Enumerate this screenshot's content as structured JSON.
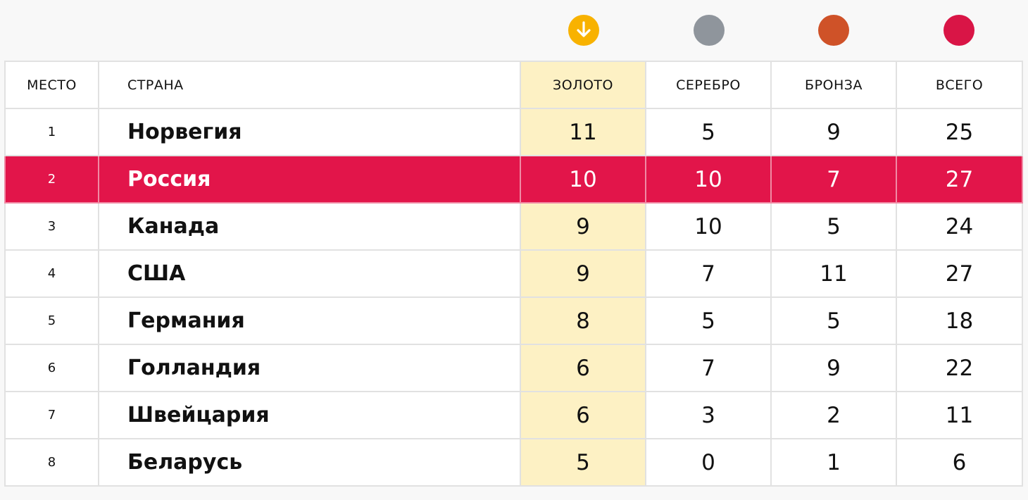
{
  "colors": {
    "gold": "#f8b200",
    "silver": "#8f959c",
    "bronze": "#cf5228",
    "total": "#d91546",
    "highlight_row": "#e2154a",
    "gold_column": "#fdf1c4"
  },
  "header_icons": [
    {
      "name": "gold-medal-icon",
      "color": "#f8b200",
      "glyph": "arrow-down-icon"
    },
    {
      "name": "silver-medal-icon",
      "color": "#8f959c"
    },
    {
      "name": "bronze-medal-icon",
      "color": "#cf5228"
    },
    {
      "name": "total-medal-icon",
      "color": "#d91546"
    }
  ],
  "table": {
    "headers": {
      "rank": "МЕСТО",
      "country": "СТРАНА",
      "gold": "ЗОЛОТО",
      "silver": "СЕРЕБРО",
      "bronze": "БРОНЗА",
      "total": "ВСЕГО"
    },
    "rows": [
      {
        "rank": "1",
        "country": "Норвегия",
        "gold": "11",
        "silver": "5",
        "bronze": "9",
        "total": "25"
      },
      {
        "rank": "2",
        "country": "Россия",
        "gold": "10",
        "silver": "10",
        "bronze": "7",
        "total": "27",
        "highlighted": true
      },
      {
        "rank": "3",
        "country": "Канада",
        "gold": "9",
        "silver": "10",
        "bronze": "5",
        "total": "24"
      },
      {
        "rank": "4",
        "country": "США",
        "gold": "9",
        "silver": "7",
        "bronze": "11",
        "total": "27"
      },
      {
        "rank": "5",
        "country": "Германия",
        "gold": "8",
        "silver": "5",
        "bronze": "5",
        "total": "18"
      },
      {
        "rank": "6",
        "country": "Голландия",
        "gold": "6",
        "silver": "7",
        "bronze": "9",
        "total": "22"
      },
      {
        "rank": "7",
        "country": "Швейцария",
        "gold": "6",
        "silver": "3",
        "bronze": "2",
        "total": "11"
      },
      {
        "rank": "8",
        "country": "Беларусь",
        "gold": "5",
        "silver": "0",
        "bronze": "1",
        "total": "6"
      }
    ]
  }
}
